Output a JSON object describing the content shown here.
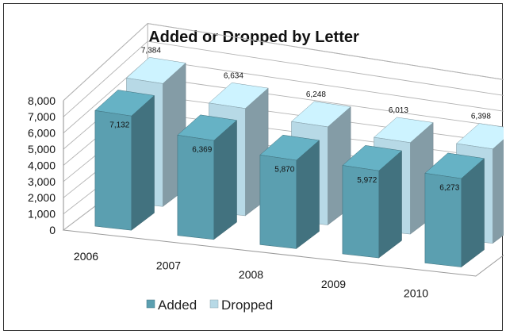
{
  "chart_data": {
    "type": "bar",
    "title": "Added or Dropped by Letter",
    "categories": [
      "2006",
      "2007",
      "2008",
      "2009",
      "2010"
    ],
    "series": [
      {
        "name": "Added",
        "values": [
          7132,
          6369,
          5870,
          5972,
          6273
        ],
        "labels": [
          "7,132",
          "6,369",
          "5,870",
          "5,972",
          "6,273"
        ],
        "color": "#5b9fb0"
      },
      {
        "name": "Dropped",
        "values": [
          7384,
          6634,
          6248,
          6013,
          6398
        ],
        "labels": [
          "7,384",
          "6,634",
          "6,248",
          "6,013",
          "6,398"
        ],
        "color": "#b7d9e6"
      }
    ],
    "yticks": [
      "0",
      "1,000",
      "2,000",
      "3,000",
      "4,000",
      "5,000",
      "6,000",
      "7,000",
      "8,000"
    ],
    "ylim": [
      0,
      8000
    ],
    "grid": true,
    "legend_position": "bottom",
    "style": "3d-column"
  }
}
